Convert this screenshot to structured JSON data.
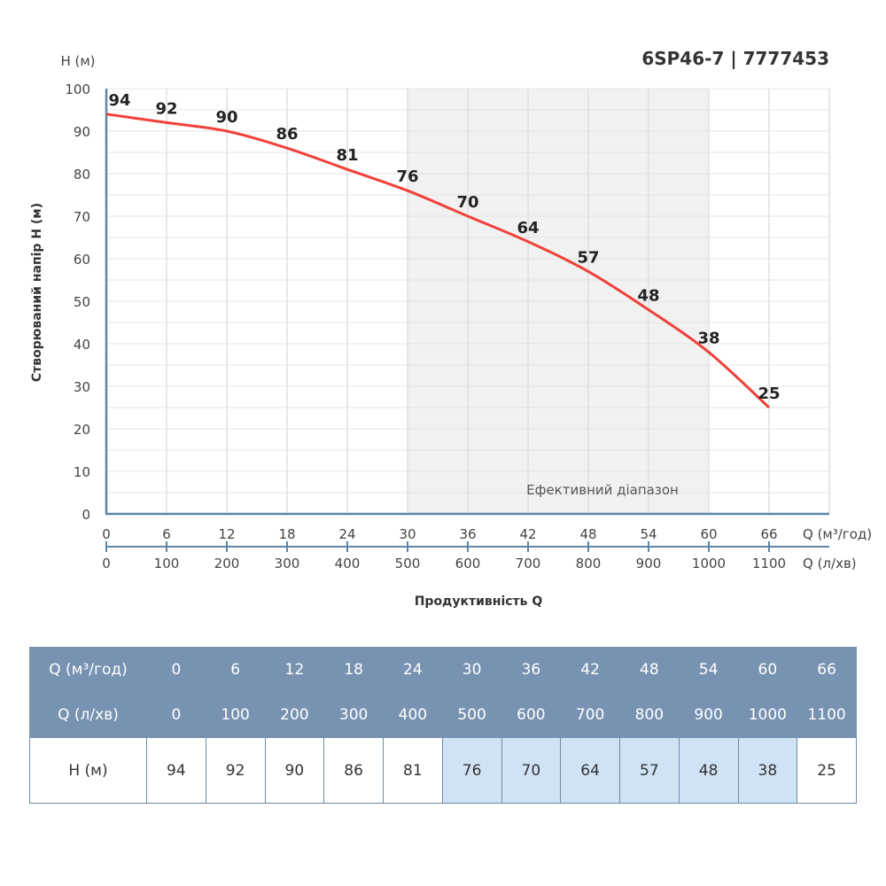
{
  "chart_data": {
    "type": "line",
    "title": "6SP46-7 | 7777453",
    "ylabel": "Створюваний напір H (м)",
    "yunit": "H (м)",
    "xlabel": "Продуктивність Q",
    "x_unit_primary": "Q (м³/год)",
    "x_unit_secondary": "Q (л/хв)",
    "x": [
      0,
      6,
      12,
      18,
      24,
      30,
      36,
      42,
      48,
      54,
      60,
      66
    ],
    "x_secondary": [
      0,
      100,
      200,
      300,
      400,
      500,
      600,
      700,
      800,
      900,
      1000,
      1100
    ],
    "y": [
      94,
      92,
      90,
      86,
      81,
      76,
      70,
      64,
      57,
      48,
      38,
      25
    ],
    "xlim": [
      0,
      72
    ],
    "ylim": [
      0,
      100
    ],
    "yticks": [
      0,
      10,
      20,
      30,
      40,
      50,
      60,
      70,
      80,
      90,
      100
    ],
    "grid": true,
    "efficient_range": {
      "label": "Ефективний діапазон",
      "from": 30,
      "to": 60
    },
    "line_color": "#f0413a"
  },
  "table": {
    "row_labels": [
      "Q (м³/год)",
      "Q (л/хв)",
      "H (м)"
    ],
    "q_m3": [
      "0",
      "6",
      "12",
      "18",
      "24",
      "30",
      "36",
      "42",
      "48",
      "54",
      "60",
      "66"
    ],
    "q_lmin": [
      "0",
      "100",
      "200",
      "300",
      "400",
      "500",
      "600",
      "700",
      "800",
      "900",
      "1000",
      "1100"
    ],
    "h": [
      "94",
      "92",
      "90",
      "86",
      "81",
      "76",
      "70",
      "64",
      "57",
      "48",
      "38",
      "25"
    ],
    "highlight_color": "#cfe3f5",
    "header_color": "#7893b2"
  }
}
